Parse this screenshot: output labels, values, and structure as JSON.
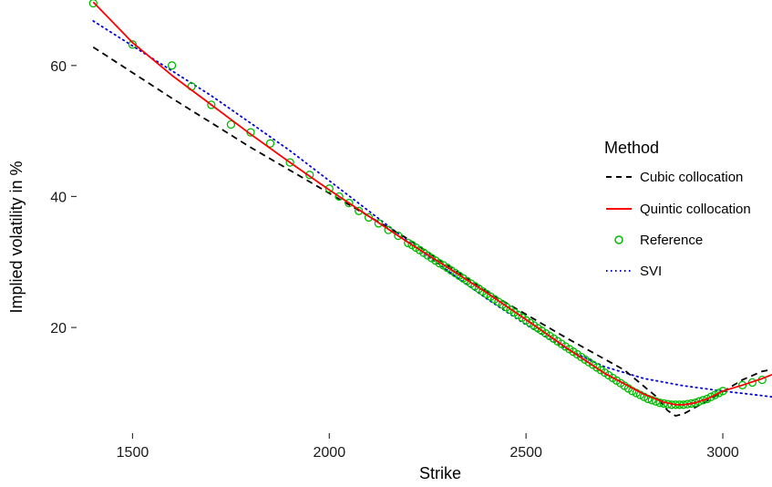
{
  "chart_data": {
    "type": "line",
    "title": "",
    "xlabel": "Strike",
    "ylabel": "Implied volatility in %",
    "xlim": [
      1360,
      3125
    ],
    "ylim": [
      4,
      70
    ],
    "x_ticks": [
      1500,
      2000,
      2500,
      3000
    ],
    "y_ticks": [
      20,
      40,
      60
    ],
    "x_tick_labels": [
      "1500",
      "2000",
      "2500",
      "3000"
    ],
    "y_tick_labels": [
      "20",
      "40",
      "60"
    ],
    "grid": false,
    "legend": {
      "title": "Method",
      "position": "right"
    },
    "series": [
      {
        "name": "Cubic collocation",
        "style": "dashed",
        "color": "#000000",
        "x": [
          1400,
          1600,
          1800,
          2000,
          2200,
          2400,
          2600,
          2750,
          2830,
          2860,
          2880,
          2900,
          2930,
          2960,
          3000,
          3050,
          3100,
          3125
        ],
        "y": [
          62.8,
          55.0,
          47.5,
          40.5,
          33.5,
          25.5,
          18.5,
          13.5,
          9.5,
          7.3,
          6.5,
          6.8,
          7.8,
          8.8,
          10.2,
          12.0,
          13.3,
          13.6
        ]
      },
      {
        "name": "Quintic collocation",
        "style": "solid",
        "color": "#ff0000",
        "x": [
          1400,
          1500,
          1600,
          1700,
          1800,
          1900,
          2000,
          2100,
          2200,
          2300,
          2400,
          2500,
          2600,
          2700,
          2800,
          2850,
          2880,
          2900,
          2930,
          2960,
          3000,
          3050,
          3100,
          3125
        ],
        "y": [
          69.7,
          63.5,
          58.5,
          54.0,
          49.5,
          45.2,
          41.0,
          37.0,
          33.0,
          29.2,
          25.3,
          21.2,
          17.0,
          13.0,
          9.8,
          8.6,
          8.2,
          8.2,
          8.5,
          9.1,
          10.3,
          11.2,
          12.2,
          12.8
        ]
      },
      {
        "name": "Reference",
        "style": "points",
        "color": "#00bb00",
        "x": [
          1400,
          1500,
          1600,
          1650,
          1700,
          1750,
          1800,
          1850,
          1900,
          1950,
          2000,
          2025,
          2050,
          2075,
          2100,
          2125,
          2150,
          2175,
          2200,
          2210,
          2220,
          2230,
          2240,
          2250,
          2260,
          2270,
          2280,
          2290,
          2300,
          2310,
          2320,
          2330,
          2340,
          2350,
          2360,
          2370,
          2380,
          2390,
          2400,
          2410,
          2420,
          2430,
          2440,
          2450,
          2460,
          2470,
          2480,
          2490,
          2500,
          2510,
          2520,
          2530,
          2540,
          2550,
          2560,
          2570,
          2580,
          2590,
          2600,
          2610,
          2620,
          2630,
          2640,
          2650,
          2660,
          2670,
          2680,
          2690,
          2700,
          2710,
          2720,
          2730,
          2740,
          2750,
          2760,
          2770,
          2780,
          2790,
          2800,
          2810,
          2820,
          2830,
          2840,
          2850,
          2860,
          2870,
          2880,
          2890,
          2900,
          2910,
          2920,
          2930,
          2940,
          2950,
          2960,
          2970,
          2980,
          2990,
          3000,
          3050,
          3075,
          3100
        ],
        "y": [
          69.5,
          63.2,
          60.0,
          56.8,
          54.0,
          51.0,
          49.8,
          48.1,
          45.2,
          43.3,
          41.2,
          40.0,
          39.0,
          37.8,
          36.8,
          35.9,
          34.9,
          34.0,
          32.9,
          32.6,
          32.2,
          31.8,
          31.4,
          31.0,
          30.6,
          30.2,
          29.8,
          29.5,
          29.1,
          28.7,
          28.3,
          27.9,
          27.5,
          27.1,
          26.7,
          26.3,
          25.9,
          25.5,
          25.1,
          24.7,
          24.3,
          23.9,
          23.5,
          23.1,
          22.7,
          22.3,
          21.9,
          21.5,
          21.1,
          20.7,
          20.3,
          19.9,
          19.5,
          19.1,
          18.7,
          18.3,
          17.9,
          17.5,
          17.1,
          16.7,
          16.3,
          15.9,
          15.5,
          15.1,
          14.7,
          14.3,
          13.9,
          13.5,
          13.1,
          12.7,
          12.3,
          11.9,
          11.5,
          11.1,
          10.7,
          10.3,
          10.0,
          9.7,
          9.4,
          9.1,
          8.9,
          8.7,
          8.5,
          8.4,
          8.3,
          8.2,
          8.2,
          8.2,
          8.2,
          8.3,
          8.4,
          8.5,
          8.7,
          8.9,
          9.1,
          9.4,
          9.7,
          10.0,
          10.3,
          11.2,
          11.6,
          12.0
        ]
      },
      {
        "name": "SVI",
        "style": "dotted",
        "color": "#0000dd",
        "x": [
          1400,
          1500,
          1600,
          1700,
          1800,
          1900,
          2000,
          2100,
          2200,
          2300,
          2400,
          2500,
          2600,
          2700,
          2800,
          2900,
          3000,
          3100,
          3125
        ],
        "y": [
          66.8,
          63.0,
          59.2,
          55.4,
          51.2,
          47.0,
          42.4,
          37.8,
          33.2,
          28.7,
          24.4,
          20.4,
          16.8,
          14.0,
          12.2,
          11.1,
          10.3,
          9.6,
          9.4
        ]
      }
    ]
  }
}
